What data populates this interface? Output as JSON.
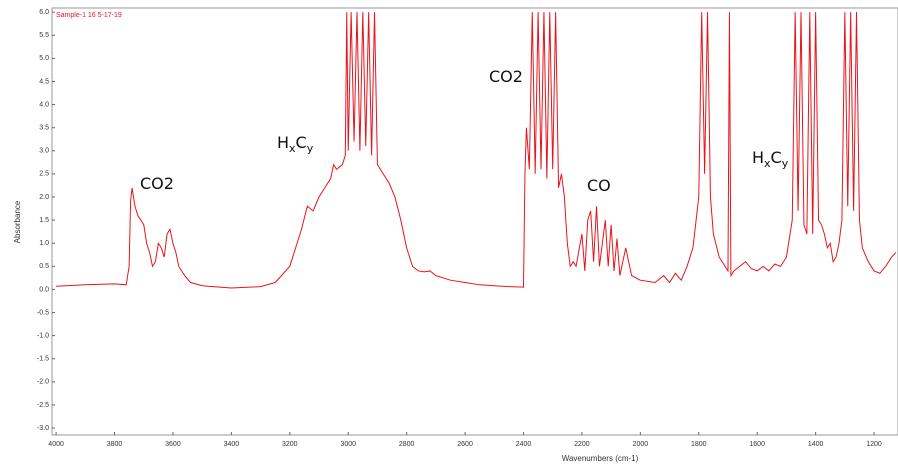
{
  "chart_data": {
    "type": "line",
    "title": "Sample-1 16 5-17-19",
    "x_label": "Wavenumbers (cm-1)",
    "y_label": "Absorbance",
    "xlim": [
      4014,
      1118
    ],
    "ylim": [
      -3.15,
      6.09
    ],
    "xticks": [
      4000,
      3800,
      3600,
      3400,
      3200,
      3000,
      2800,
      2600,
      2400,
      2200,
      2000,
      1800,
      1600,
      1400,
      1200
    ],
    "yticks": [
      {
        "value": 6,
        "label": "6.0"
      },
      5.5,
      {
        "value": 5,
        "label": "5.0"
      },
      4.5,
      {
        "value": 4,
        "label": "4.0"
      },
      3.5,
      {
        "value": 3,
        "label": "3.0"
      },
      2.5,
      {
        "value": 2,
        "label": "2.0"
      },
      1.5,
      {
        "value": 1,
        "label": "1.0"
      },
      0.5,
      {
        "value": 0,
        "label": "0.0"
      },
      -0.5,
      {
        "value": -1,
        "label": "-1.0"
      },
      -1.5,
      {
        "value": -2,
        "label": "-2.0"
      },
      -2.5,
      {
        "value": -3,
        "label": "-3.0"
      }
    ],
    "annotations": [
      {
        "parts": [
          "CO2"
        ]
      },
      {
        "parts": [
          "H",
          "x",
          "C",
          "y"
        ]
      },
      {
        "parts": [
          "CO2"
        ]
      },
      {
        "parts": [
          "CO"
        ]
      },
      {
        "parts": [
          "H",
          "x",
          "C",
          "y"
        ]
      }
    ],
    "series": [
      {
        "name": "Sample-1 16 5-17-19",
        "color": "#e8141c",
        "x": [
          4000,
          3900,
          3800,
          3760,
          3750,
          3745,
          3740,
          3730,
          3720,
          3700,
          3690,
          3680,
          3670,
          3660,
          3650,
          3640,
          3630,
          3620,
          3610,
          3600,
          3590,
          3580,
          3560,
          3540,
          3500,
          3400,
          3300,
          3250,
          3200,
          3180,
          3160,
          3140,
          3120,
          3100,
          3080,
          3060,
          3050,
          3040,
          3020,
          3010,
          3005,
          3000,
          2990,
          2980,
          2970,
          2960,
          2950,
          2940,
          2930,
          2920,
          2910,
          2900,
          2880,
          2860,
          2840,
          2820,
          2800,
          2780,
          2760,
          2740,
          2720,
          2700,
          2650,
          2600,
          2550,
          2500,
          2450,
          2400,
          2395,
          2390,
          2380,
          2370,
          2360,
          2350,
          2340,
          2330,
          2320,
          2310,
          2300,
          2290,
          2280,
          2270,
          2260,
          2250,
          2240,
          2230,
          2220,
          2200,
          2190,
          2180,
          2170,
          2160,
          2150,
          2140,
          2120,
          2110,
          2100,
          2090,
          2080,
          2070,
          2050,
          2030,
          2000,
          1950,
          1920,
          1900,
          1880,
          1860,
          1840,
          1820,
          1800,
          1790,
          1780,
          1770,
          1760,
          1750,
          1730,
          1710,
          1700,
          1695,
          1690,
          1680,
          1660,
          1640,
          1620,
          1600,
          1580,
          1560,
          1540,
          1520,
          1500,
          1480,
          1470,
          1460,
          1450,
          1440,
          1430,
          1420,
          1410,
          1400,
          1390,
          1380,
          1370,
          1360,
          1350,
          1340,
          1330,
          1320,
          1310,
          1300,
          1290,
          1280,
          1270,
          1260,
          1250,
          1240,
          1220,
          1200,
          1180,
          1160,
          1140,
          1125
        ],
        "values": [
          0.07,
          0.1,
          0.12,
          0.1,
          0.5,
          1.9,
          2.2,
          1.8,
          1.6,
          1.4,
          1.0,
          0.8,
          0.5,
          0.6,
          1.0,
          0.9,
          0.7,
          1.2,
          1.3,
          1.0,
          0.8,
          0.5,
          0.3,
          0.15,
          0.08,
          0.03,
          0.06,
          0.15,
          0.5,
          0.9,
          1.3,
          1.8,
          1.7,
          2.0,
          2.2,
          2.4,
          2.7,
          2.6,
          2.7,
          2.9,
          6.0,
          3.0,
          6.0,
          3.2,
          6.0,
          3.0,
          6.0,
          3.1,
          6.0,
          2.9,
          6.0,
          2.7,
          2.5,
          2.3,
          2.0,
          1.5,
          0.9,
          0.5,
          0.4,
          0.38,
          0.4,
          0.3,
          0.2,
          0.15,
          0.1,
          0.08,
          0.06,
          0.05,
          2.5,
          3.5,
          2.6,
          6.0,
          2.5,
          6.0,
          2.6,
          6.0,
          2.4,
          6.0,
          2.6,
          6.0,
          2.2,
          2.5,
          2.0,
          1.0,
          0.5,
          0.6,
          0.5,
          1.2,
          0.4,
          1.5,
          1.7,
          0.6,
          1.8,
          0.5,
          1.5,
          0.5,
          1.4,
          0.4,
          1.1,
          0.3,
          0.9,
          0.3,
          0.2,
          0.15,
          0.3,
          0.15,
          0.35,
          0.2,
          0.5,
          0.9,
          2.0,
          6.0,
          2.5,
          6.0,
          2.0,
          1.2,
          0.7,
          0.5,
          0.4,
          6.0,
          0.3,
          0.4,
          0.5,
          0.6,
          0.45,
          0.4,
          0.5,
          0.4,
          0.55,
          0.5,
          0.7,
          1.5,
          6.0,
          1.7,
          6.0,
          1.4,
          1.2,
          6.0,
          1.2,
          6.0,
          1.5,
          1.4,
          1.2,
          0.9,
          1.0,
          0.6,
          0.7,
          1.0,
          1.5,
          6.0,
          1.8,
          6.0,
          1.7,
          6.0,
          1.5,
          0.9,
          0.6,
          0.4,
          0.35,
          0.5,
          0.7,
          0.8
        ]
      }
    ]
  }
}
